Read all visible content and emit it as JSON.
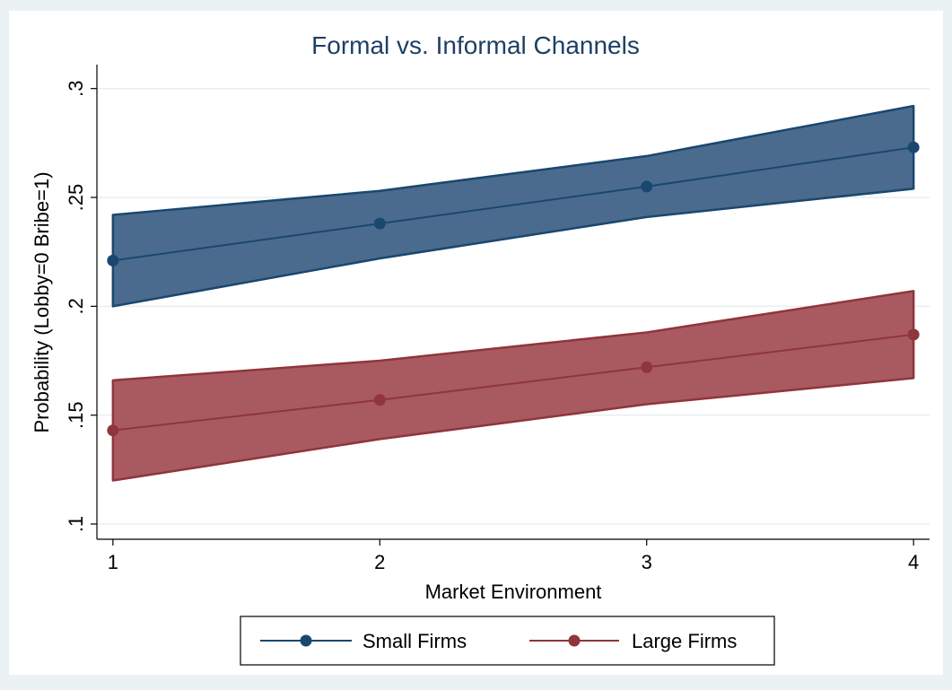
{
  "chart_data": {
    "type": "line",
    "title": "Formal vs. Informal Channels",
    "xlabel": "Market Environment",
    "ylabel": "Probability (Lobby=0 Bribe=1)",
    "x": [
      1,
      2,
      3,
      4
    ],
    "x_tick_labels": [
      "1",
      "2",
      "3",
      "4"
    ],
    "y_ticks": [
      0.1,
      0.15,
      0.2,
      0.25,
      0.3
    ],
    "y_tick_labels": [
      ".1",
      ".15",
      ".2",
      ".25",
      ".3"
    ],
    "xlim": [
      0.94,
      4.06
    ],
    "ylim": [
      0.093,
      0.311
    ],
    "grid": true,
    "legend_position": "bottom",
    "series": [
      {
        "name": "Small Firms",
        "color": "#1a476f",
        "band_color": "#4a6b8d",
        "values": [
          0.221,
          0.238,
          0.255,
          0.273
        ],
        "ci_lower": [
          0.2,
          0.222,
          0.241,
          0.254
        ],
        "ci_upper": [
          0.242,
          0.253,
          0.269,
          0.292
        ]
      },
      {
        "name": "Large Firms",
        "color": "#90353b",
        "band_color": "#a85a60",
        "values": [
          0.143,
          0.157,
          0.172,
          0.187
        ],
        "ci_lower": [
          0.12,
          0.139,
          0.155,
          0.167
        ],
        "ci_upper": [
          0.166,
          0.175,
          0.188,
          0.207
        ]
      }
    ]
  }
}
